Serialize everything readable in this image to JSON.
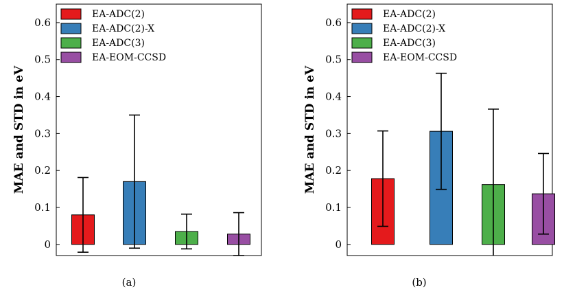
{
  "chart_data": [
    {
      "type": "bar",
      "caption": "(a)",
      "ylabel": "MAE and STD in eV",
      "ylim": [
        -0.03,
        0.65
      ],
      "yticks": [
        "0",
        "0.1",
        "0.2",
        "0.3",
        "0.4",
        "0.5",
        "0.6"
      ],
      "categories": [
        "EA-ADC(2)",
        "EA-ADC(2)-X",
        "EA-ADC(3)",
        "EA-EOM-CCSD"
      ],
      "values": [
        0.08,
        0.17,
        0.035,
        0.028
      ],
      "errors": [
        0.101,
        0.18,
        0.047,
        0.058
      ],
      "legend": {
        "placement": "top-left",
        "entries": [
          "EA-ADC(2)",
          "EA-ADC(2)-X",
          "EA-ADC(3)",
          "EA-EOM-CCSD"
        ]
      },
      "grid": false
    },
    {
      "type": "bar",
      "caption": "(b)",
      "ylabel": "MAE and STD in eV",
      "ylim": [
        -0.03,
        0.65
      ],
      "yticks": [
        "0",
        "0.1",
        "0.2",
        "0.3",
        "0.4",
        "0.5",
        "0.6"
      ],
      "categories": [
        "EA-ADC(2)",
        "EA-ADC(2)-X",
        "EA-ADC(3)",
        "EA-EOM-CCSD"
      ],
      "values": [
        0.178,
        0.306,
        0.162,
        0.137
      ],
      "errors": [
        0.129,
        0.157,
        0.204,
        0.109
      ],
      "legend": {
        "placement": "top-left",
        "entries": [
          "EA-ADC(2)",
          "EA-ADC(2)-X",
          "EA-ADC(3)",
          "EA-EOM-CCSD"
        ]
      },
      "grid": false
    }
  ],
  "colors": [
    "#e41a1c",
    "#377eb8",
    "#4daf4a",
    "#984ea3"
  ]
}
